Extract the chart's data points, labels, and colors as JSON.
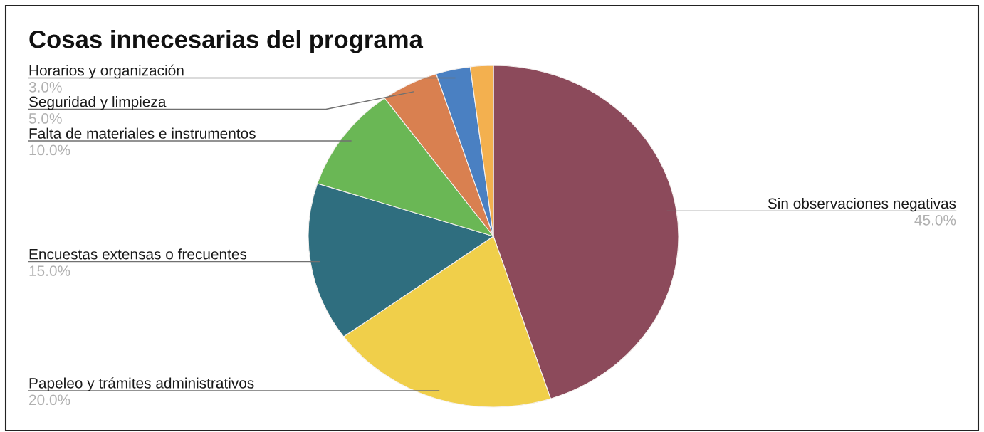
{
  "chart_data": {
    "type": "pie",
    "title": "Cosas innecesarias del programa",
    "categories": [
      "Sin observaciones negativas",
      "Papeleo y trámites administrativos",
      "Encuestas extensas o frecuentes",
      "Falta de materiales e instrumentos",
      "Seguridad y limpieza",
      "Horarios y organización",
      null
    ],
    "values": [
      45,
      20,
      15,
      10,
      5,
      3,
      2
    ],
    "value_labels": [
      "45.0%",
      "20.0%",
      "15.0%",
      "10.0%",
      "5.0%",
      "3.0%",
      null
    ],
    "colors": [
      "#8c4a5b",
      "#f0cf4a",
      "#2f6e7f",
      "#6ab755",
      "#d98050",
      "#4a80c2",
      "#f3b04f"
    ]
  }
}
